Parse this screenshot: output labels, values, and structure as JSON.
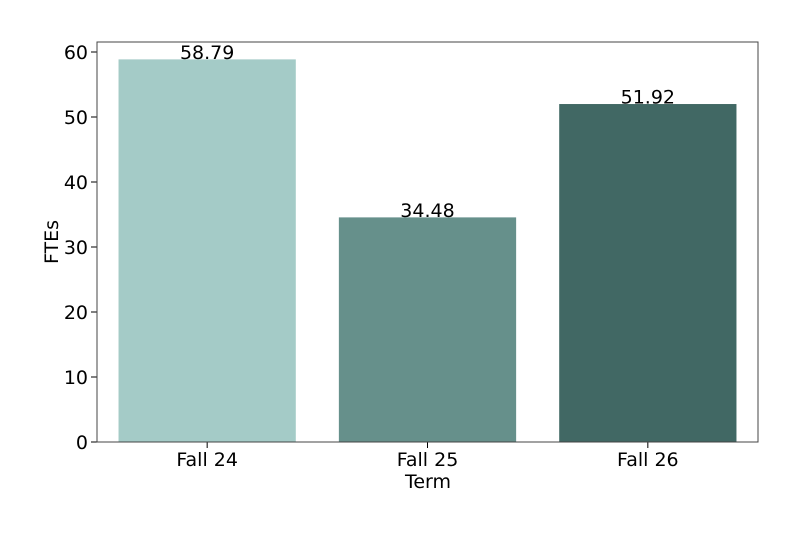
{
  "chart_data": {
    "type": "bar",
    "x_label": "Term",
    "y_label": "FTEs",
    "categories": [
      "Fall 24",
      "Fall 25",
      "Fall 26"
    ],
    "values": [
      58.79,
      34.48,
      51.92
    ],
    "colors": [
      "#a4cbc7",
      "#66908b",
      "#416864"
    ],
    "ylim": [
      0,
      61.54
    ],
    "yticks": [
      0,
      10,
      20,
      30,
      40,
      50,
      60
    ],
    "grid": false
  }
}
